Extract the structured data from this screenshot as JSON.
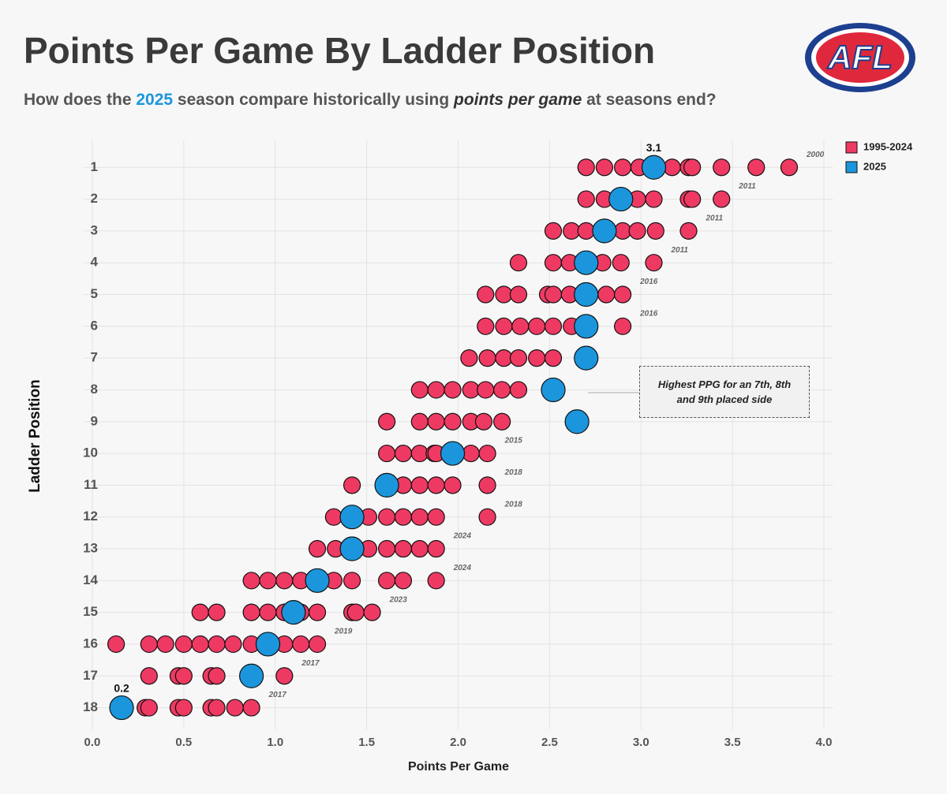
{
  "chart_data": {
    "type": "scatter",
    "title": "Points Per Game By Ladder Position",
    "subtitle": [
      "How does the ",
      "2025",
      " season compare historically using ",
      "points per game",
      " at seasons end?"
    ],
    "logo": "AFL",
    "x_label": "Points Per Game",
    "y_label": "Ladder Position",
    "xlim": [
      -0.05,
      4.05
    ],
    "xticks": [
      {
        "value": 0,
        "label": "0.0"
      },
      0.5,
      {
        "value": 1,
        "label": "1.0"
      },
      1.5,
      {
        "value": 2,
        "label": "2.0"
      },
      2.5,
      {
        "value": 3,
        "label": "3.0"
      },
      3.5,
      {
        "value": 4,
        "label": "4.0"
      }
    ],
    "ylim": [
      0.15,
      18.68
    ],
    "y_inverted": true,
    "yticks": [
      1,
      2,
      3,
      4,
      5,
      6,
      7,
      8,
      9,
      10,
      11,
      12,
      13,
      14,
      15,
      16,
      17,
      18
    ],
    "grid": true,
    "legend": "top-right",
    "series": [
      {
        "name": "1995-2024",
        "color": "#ee3a62",
        "x": [
          2.7,
          2.8,
          2.9,
          2.99,
          3.17,
          3.26,
          3.28,
          3.44,
          3.63,
          3.81,
          2.7,
          2.8,
          2.98,
          3.07,
          3.26,
          3.28,
          3.44,
          2.52,
          2.62,
          2.7,
          2.9,
          2.98,
          3.08,
          3.26,
          2.33,
          2.52,
          2.61,
          2.79,
          2.89,
          3.07,
          2.15,
          2.25,
          2.33,
          2.49,
          2.52,
          2.61,
          2.81,
          2.9,
          2.15,
          2.25,
          2.34,
          2.43,
          2.52,
          2.62,
          2.9,
          2.06,
          2.16,
          2.25,
          2.33,
          2.43,
          2.52,
          1.79,
          1.88,
          1.97,
          2.07,
          2.15,
          2.24,
          2.33,
          1.61,
          1.79,
          1.88,
          1.97,
          2.07,
          2.14,
          2.24,
          1.61,
          1.7,
          1.79,
          1.87,
          1.88,
          2.07,
          2.16,
          1.42,
          1.7,
          1.79,
          1.88,
          1.97,
          2.16,
          1.32,
          1.51,
          1.61,
          1.7,
          1.79,
          1.88,
          2.16,
          1.23,
          1.33,
          1.51,
          1.61,
          1.7,
          1.79,
          1.88,
          0.87,
          0.96,
          1.05,
          1.14,
          1.32,
          1.42,
          1.61,
          1.7,
          1.88,
          0.59,
          0.68,
          0.87,
          0.96,
          1.05,
          1.14,
          1.23,
          1.42,
          1.44,
          1.53,
          0.13,
          0.31,
          0.4,
          0.5,
          0.59,
          0.68,
          0.77,
          0.87,
          1.05,
          1.14,
          1.23,
          0.31,
          0.47,
          0.5,
          0.65,
          0.68,
          1.05,
          0.29,
          0.31,
          0.47,
          0.5,
          0.65,
          0.68,
          0.78,
          0.87
        ],
        "y": [
          1,
          1,
          1,
          1,
          1,
          1,
          1,
          1,
          1,
          1,
          2,
          2,
          2,
          2,
          2,
          2,
          2,
          3,
          3,
          3,
          3,
          3,
          3,
          3,
          4,
          4,
          4,
          4,
          4,
          4,
          5,
          5,
          5,
          5,
          5,
          5,
          5,
          5,
          6,
          6,
          6,
          6,
          6,
          6,
          6,
          7,
          7,
          7,
          7,
          7,
          7,
          8,
          8,
          8,
          8,
          8,
          8,
          8,
          9,
          9,
          9,
          9,
          9,
          9,
          9,
          10,
          10,
          10,
          10,
          10,
          10,
          10,
          11,
          11,
          11,
          11,
          11,
          11,
          12,
          12,
          12,
          12,
          12,
          12,
          12,
          13,
          13,
          13,
          13,
          13,
          13,
          13,
          14,
          14,
          14,
          14,
          14,
          14,
          14,
          14,
          14,
          15,
          15,
          15,
          15,
          15,
          15,
          15,
          15,
          15,
          15,
          16,
          16,
          16,
          16,
          16,
          16,
          16,
          16,
          16,
          16,
          16,
          17,
          17,
          17,
          17,
          17,
          17,
          18,
          18,
          18,
          18,
          18,
          18,
          18,
          18
        ]
      },
      {
        "name": "2025",
        "color": "#1b96dc",
        "x": [
          3.07,
          2.89,
          2.8,
          2.7,
          2.7,
          2.7,
          2.7,
          2.52,
          2.65,
          1.97,
          1.61,
          1.42,
          1.42,
          1.23,
          1.1,
          0.96,
          0.87,
          0.16
        ],
        "y": [
          1,
          2,
          3,
          4,
          5,
          6,
          7,
          8,
          9,
          10,
          11,
          12,
          13,
          14,
          15,
          16,
          17,
          18
        ],
        "value_labels": [
          "3.1",
          null,
          null,
          null,
          null,
          null,
          null,
          null,
          null,
          null,
          null,
          null,
          null,
          null,
          null,
          null,
          null,
          "0.2"
        ]
      }
    ],
    "year_labels": [
      {
        "y": 1,
        "label": "2000"
      },
      {
        "y": 2,
        "label": "2011"
      },
      {
        "y": 3,
        "label": "2011"
      },
      {
        "y": 4,
        "label": "2011"
      },
      {
        "y": 5,
        "label": "2016"
      },
      {
        "y": 6,
        "label": "2016"
      },
      {
        "y": 10,
        "label": "2015"
      },
      {
        "y": 11,
        "label": "2018"
      },
      {
        "y": 12,
        "label": "2018"
      },
      {
        "y": 13,
        "label": "2024"
      },
      {
        "y": 14,
        "label": "2024"
      },
      {
        "y": 15,
        "label": "2023"
      },
      {
        "y": 16,
        "label": "2019"
      },
      {
        "y": 17,
        "label": "2017"
      },
      {
        "y": 18,
        "label": "2017"
      }
    ],
    "callout": "Highest PPG for an 7th, 8th and 9th placed side"
  }
}
